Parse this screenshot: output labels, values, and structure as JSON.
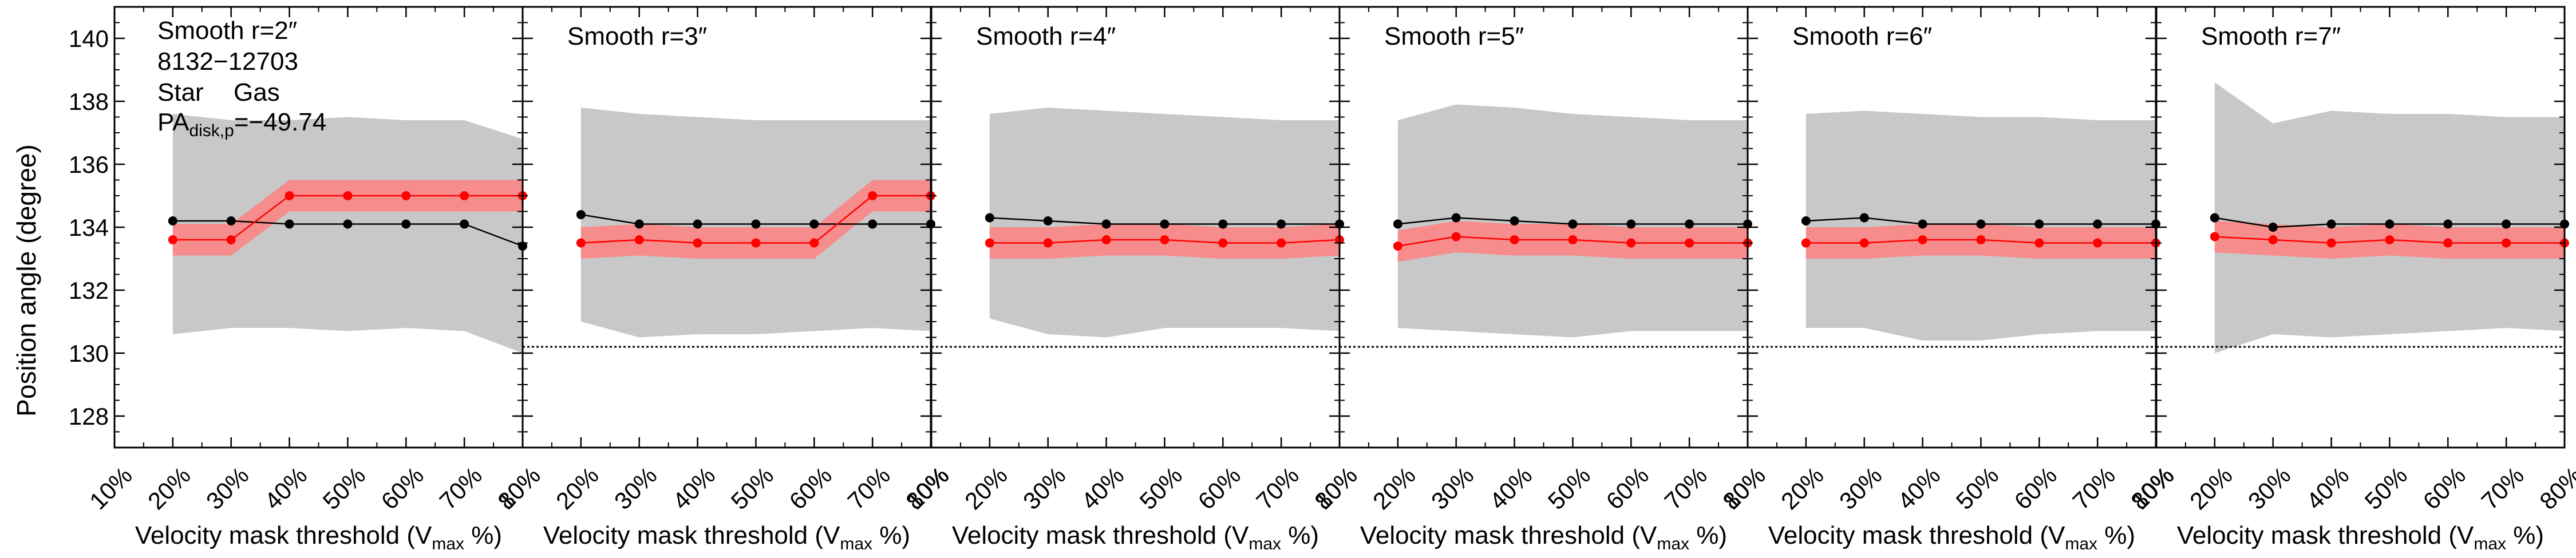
{
  "figure": {
    "ylabel": "Position angle (degree)",
    "xlabel_main": "Velocity mask threshold (V",
    "xlabel_sub": "max",
    "xlabel_tail": " %)",
    "object_id": "8132−12703",
    "legend_star": "Star",
    "legend_gas": "Gas",
    "pa_main": "PA",
    "pa_sub": "disk,p",
    "pa_value": "=−49.74",
    "colors": {
      "star": "#000000",
      "gas": "#ff0000",
      "gas_band": "#f78c8c",
      "range_band": "#c8c8c8",
      "reference_line": "#000000"
    }
  },
  "chart_data": [
    {
      "type": "line",
      "title": "Smooth r=2″",
      "x": [
        20,
        30,
        40,
        50,
        60,
        70,
        80
      ],
      "categories": [
        "10%",
        "20%",
        "30%",
        "40%",
        "50%",
        "60%",
        "70%",
        "80%"
      ],
      "xlim": [
        10,
        80
      ],
      "ylim": [
        127,
        141
      ],
      "yticks": [
        128,
        130,
        132,
        134,
        136,
        138,
        140
      ],
      "series": [
        {
          "name": "Star",
          "values": [
            134.2,
            134.2,
            134.1,
            134.1,
            134.1,
            134.1,
            133.4
          ]
        },
        {
          "name": "Gas",
          "values": [
            133.6,
            133.6,
            135.0,
            135.0,
            135.0,
            135.0,
            135.0
          ]
        }
      ],
      "gas_band": {
        "lower": [
          133.1,
          133.1,
          134.5,
          134.5,
          134.5,
          134.5,
          134.5
        ],
        "upper": [
          134.1,
          134.1,
          135.5,
          135.5,
          135.5,
          135.5,
          135.5
        ]
      },
      "range_band": {
        "lower": [
          130.6,
          130.8,
          130.8,
          130.7,
          130.8,
          130.7,
          130.0
        ],
        "upper": [
          137.6,
          137.4,
          137.4,
          137.5,
          137.4,
          137.4,
          136.8
        ]
      },
      "reference_line": null
    },
    {
      "type": "line",
      "title": "Smooth r=3″",
      "x": [
        20,
        30,
        40,
        50,
        60,
        70,
        80
      ],
      "categories": [
        "10%",
        "20%",
        "30%",
        "40%",
        "50%",
        "60%",
        "70%",
        "80%"
      ],
      "xlim": [
        10,
        80
      ],
      "ylim": [
        127,
        141
      ],
      "series": [
        {
          "name": "Star",
          "values": [
            134.4,
            134.1,
            134.1,
            134.1,
            134.1,
            134.1,
            134.1
          ]
        },
        {
          "name": "Gas",
          "values": [
            133.5,
            133.6,
            133.5,
            133.5,
            133.5,
            135.0,
            135.0
          ]
        }
      ],
      "gas_band": {
        "lower": [
          133.0,
          133.1,
          133.0,
          133.0,
          133.0,
          134.5,
          134.5
        ],
        "upper": [
          134.0,
          134.1,
          134.0,
          134.0,
          134.0,
          135.5,
          135.5
        ]
      },
      "range_band": {
        "lower": [
          131.0,
          130.5,
          130.6,
          130.6,
          130.7,
          130.8,
          130.7
        ],
        "upper": [
          137.8,
          137.6,
          137.5,
          137.4,
          137.4,
          137.4,
          137.4
        ]
      },
      "reference_line": 130.2
    },
    {
      "type": "line",
      "title": "Smooth r=4″",
      "x": [
        20,
        30,
        40,
        50,
        60,
        70,
        80
      ],
      "categories": [
        "10%",
        "20%",
        "30%",
        "40%",
        "50%",
        "60%",
        "70%",
        "80%"
      ],
      "xlim": [
        10,
        80
      ],
      "ylim": [
        127,
        141
      ],
      "series": [
        {
          "name": "Star",
          "values": [
            134.3,
            134.2,
            134.1,
            134.1,
            134.1,
            134.1,
            134.1
          ]
        },
        {
          "name": "Gas",
          "values": [
            133.5,
            133.5,
            133.6,
            133.6,
            133.5,
            133.5,
            133.6
          ]
        }
      ],
      "gas_band": {
        "lower": [
          133.0,
          133.0,
          133.1,
          133.1,
          133.0,
          133.0,
          133.1
        ],
        "upper": [
          134.0,
          134.0,
          134.1,
          134.1,
          134.0,
          134.0,
          134.1
        ]
      },
      "range_band": {
        "lower": [
          131.1,
          130.6,
          130.5,
          130.8,
          130.8,
          130.8,
          130.7
        ],
        "upper": [
          137.6,
          137.8,
          137.7,
          137.6,
          137.5,
          137.4,
          137.4
        ]
      },
      "reference_line": 130.2
    },
    {
      "type": "line",
      "title": "Smooth r=5″",
      "x": [
        20,
        30,
        40,
        50,
        60,
        70,
        80
      ],
      "categories": [
        "10%",
        "20%",
        "30%",
        "40%",
        "50%",
        "60%",
        "70%",
        "80%"
      ],
      "xlim": [
        10,
        80
      ],
      "ylim": [
        127,
        141
      ],
      "series": [
        {
          "name": "Star",
          "values": [
            134.1,
            134.3,
            134.2,
            134.1,
            134.1,
            134.1,
            134.1
          ]
        },
        {
          "name": "Gas",
          "values": [
            133.4,
            133.7,
            133.6,
            133.6,
            133.5,
            133.5,
            133.5
          ]
        }
      ],
      "gas_band": {
        "lower": [
          132.9,
          133.2,
          133.1,
          133.1,
          133.0,
          133.0,
          133.0
        ],
        "upper": [
          133.9,
          134.2,
          134.1,
          134.1,
          134.0,
          134.0,
          134.0
        ]
      },
      "range_band": {
        "lower": [
          130.8,
          130.7,
          130.6,
          130.5,
          130.7,
          130.7,
          130.7
        ],
        "upper": [
          137.4,
          137.9,
          137.8,
          137.6,
          137.5,
          137.4,
          137.4
        ]
      },
      "reference_line": 130.2
    },
    {
      "type": "line",
      "title": "Smooth r=6″",
      "x": [
        20,
        30,
        40,
        50,
        60,
        70,
        80
      ],
      "categories": [
        "10%",
        "20%",
        "30%",
        "40%",
        "50%",
        "60%",
        "70%",
        "80%"
      ],
      "xlim": [
        10,
        80
      ],
      "ylim": [
        127,
        141
      ],
      "series": [
        {
          "name": "Star",
          "values": [
            134.2,
            134.3,
            134.1,
            134.1,
            134.1,
            134.1,
            134.1
          ]
        },
        {
          "name": "Gas",
          "values": [
            133.5,
            133.5,
            133.6,
            133.6,
            133.5,
            133.5,
            133.5
          ]
        }
      ],
      "gas_band": {
        "lower": [
          133.0,
          133.0,
          133.1,
          133.1,
          133.0,
          133.0,
          133.0
        ],
        "upper": [
          134.0,
          134.0,
          134.1,
          134.1,
          134.0,
          134.0,
          134.0
        ]
      },
      "range_band": {
        "lower": [
          130.8,
          130.8,
          130.4,
          130.4,
          130.6,
          130.7,
          130.7
        ],
        "upper": [
          137.6,
          137.7,
          137.6,
          137.5,
          137.5,
          137.4,
          137.4
        ]
      },
      "reference_line": 130.2
    },
    {
      "type": "line",
      "title": "Smooth r=7″",
      "x": [
        20,
        30,
        40,
        50,
        60,
        70,
        80
      ],
      "categories": [
        "10%",
        "20%",
        "30%",
        "40%",
        "50%",
        "60%",
        "70%",
        "80%"
      ],
      "xlim": [
        10,
        80
      ],
      "ylim": [
        127,
        141
      ],
      "series": [
        {
          "name": "Star",
          "values": [
            134.3,
            134.0,
            134.1,
            134.1,
            134.1,
            134.1,
            134.1
          ]
        },
        {
          "name": "Gas",
          "values": [
            133.7,
            133.6,
            133.5,
            133.6,
            133.5,
            133.5,
            133.5
          ]
        }
      ],
      "gas_band": {
        "lower": [
          133.2,
          133.1,
          133.0,
          133.1,
          133.0,
          133.0,
          133.0
        ],
        "upper": [
          134.2,
          134.1,
          134.0,
          134.1,
          134.0,
          134.0,
          134.0
        ]
      },
      "range_band": {
        "lower": [
          130.0,
          130.6,
          130.5,
          130.6,
          130.7,
          130.8,
          130.7
        ],
        "upper": [
          138.6,
          137.3,
          137.7,
          137.6,
          137.6,
          137.5,
          137.5
        ]
      },
      "reference_line": 130.2
    }
  ]
}
